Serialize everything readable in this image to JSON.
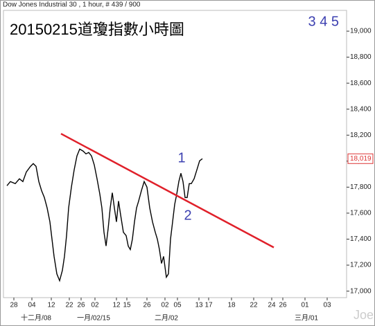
{
  "chart_data": {
    "type": "line",
    "header": "Dow Jones Industrial 30 , 1 hour, # 439 / 900",
    "title": "20150215道瓊指數小時圖",
    "corner_note": "3 4 5",
    "annotations": [
      "1",
      "2"
    ],
    "watermark": "Joe",
    "xlim": [
      0,
      495
    ],
    "ylim": [
      16950,
      19160
    ],
    "yticks": [
      {
        "value": 17000,
        "label": "17,000"
      },
      {
        "value": 17200,
        "label": "17,200"
      },
      {
        "value": 17400,
        "label": "17,400"
      },
      {
        "value": 17600,
        "label": "17,600"
      },
      {
        "value": 17800,
        "label": "17,800"
      },
      {
        "value": 18000,
        "label": "18,000"
      },
      {
        "value": 18200,
        "label": "18,200"
      },
      {
        "value": 18400,
        "label": "18,400"
      },
      {
        "value": 18600,
        "label": "18,600"
      },
      {
        "value": 18800,
        "label": "18,800"
      },
      {
        "value": 19000,
        "label": "19,000"
      }
    ],
    "xticks": [
      {
        "value": 15,
        "label": "28"
      },
      {
        "value": 41,
        "label": "04"
      },
      {
        "value": 69,
        "label": "12"
      },
      {
        "value": 95,
        "label": "22"
      },
      {
        "value": 112,
        "label": "26"
      },
      {
        "value": 132,
        "label": "02"
      },
      {
        "value": 163,
        "label": "12"
      },
      {
        "value": 178,
        "label": "15"
      },
      {
        "value": 207,
        "label": "26"
      },
      {
        "value": 233,
        "label": "02"
      },
      {
        "value": 251,
        "label": "05"
      },
      {
        "value": 282,
        "label": "13"
      },
      {
        "value": 296,
        "label": "17"
      },
      {
        "value": 329,
        "label": "18"
      },
      {
        "value": 361,
        "label": "22"
      },
      {
        "value": 387,
        "label": "24"
      },
      {
        "value": 403,
        "label": "26"
      },
      {
        "value": 435,
        "label": "01"
      },
      {
        "value": 467,
        "label": "03"
      }
    ],
    "month_labels": [
      {
        "value": 47,
        "label": "十二月/08"
      },
      {
        "value": 130,
        "label": "一月/02/15"
      },
      {
        "value": 235,
        "label": "二月/02"
      },
      {
        "value": 437,
        "label": "三月/01"
      }
    ],
    "last_price": {
      "value": 18019,
      "label": "18,019"
    },
    "series": [
      {
        "name": "Dow Jones Industrial 30",
        "color": "#000000",
        "x": [
          5,
          10,
          17,
          23,
          28,
          33,
          39,
          43,
          47,
          51,
          55,
          59,
          63,
          67,
          70,
          73,
          77,
          81,
          85,
          88,
          91,
          94,
          98,
          102,
          106,
          110,
          115,
          119,
          123,
          127,
          131,
          135,
          139,
          142,
          145,
          148,
          151,
          154,
          157,
          160,
          163,
          166,
          169,
          173,
          177,
          180,
          183,
          186,
          189,
          192,
          195,
          199,
          203,
          207,
          211,
          215,
          219,
          222,
          225,
          228,
          231,
          235,
          238,
          241,
          244,
          247,
          250,
          253,
          256,
          259,
          262,
          265,
          268,
          271,
          275,
          279,
          283,
          287
        ],
        "values": [
          17811,
          17843,
          17827,
          17864,
          17843,
          17917,
          17960,
          17981,
          17960,
          17843,
          17773,
          17720,
          17640,
          17533,
          17400,
          17267,
          17133,
          17080,
          17160,
          17267,
          17427,
          17640,
          17800,
          17933,
          18040,
          18093,
          18077,
          18056,
          18067,
          18040,
          17971,
          17864,
          17747,
          17640,
          17453,
          17347,
          17480,
          17640,
          17757,
          17640,
          17533,
          17693,
          17587,
          17453,
          17427,
          17347,
          17320,
          17400,
          17533,
          17640,
          17693,
          17773,
          17843,
          17800,
          17640,
          17533,
          17453,
          17400,
          17320,
          17213,
          17267,
          17107,
          17133,
          17400,
          17533,
          17667,
          17747,
          17843,
          17907,
          17843,
          17720,
          17720,
          17827,
          17827,
          17864,
          17933,
          18003,
          18019
        ]
      },
      {
        "name": "trend",
        "color": "#e0202a",
        "x": [
          83,
          390
        ],
        "values": [
          18211,
          17336
        ]
      }
    ]
  }
}
